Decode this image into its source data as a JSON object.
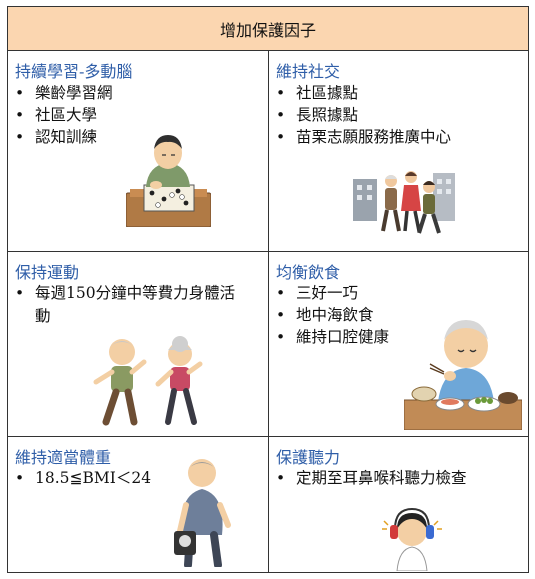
{
  "header": {
    "title": "增加保護因子"
  },
  "cells": [
    {
      "title": "持續學習-多動腦",
      "items": [
        "樂齡學習網",
        "社區大學",
        "認知訓練"
      ],
      "illustration": "man-playing-go-icon"
    },
    {
      "title": "維持社交",
      "items": [
        "社區據點",
        "長照據點",
        "苗栗志願服務推廣中心"
      ],
      "illustration": "seniors-walking-icon"
    },
    {
      "title": "保持運動",
      "items": [
        "每週150分鐘中等費力身體活動"
      ],
      "illustration": "seniors-jogging-icon"
    },
    {
      "title": "均衡飲食",
      "items": [
        "三好一巧",
        "地中海飲食",
        "維持口腔健康"
      ],
      "illustration": "senior-eating-meal-icon"
    },
    {
      "title": "維持適當體重",
      "items": [
        "18.5≦BMI＜24"
      ],
      "illustration": "man-with-scale-icon"
    },
    {
      "title": "保護聽力",
      "items": [
        "定期至耳鼻喉科聽力檢查"
      ],
      "illustration": "child-hearing-test-icon"
    }
  ]
}
